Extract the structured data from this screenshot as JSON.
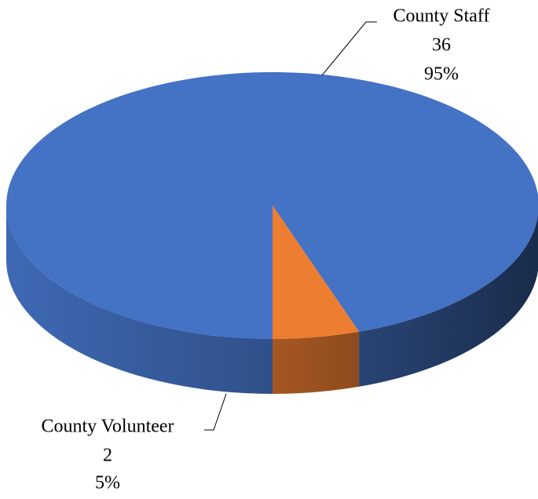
{
  "chart_data": {
    "type": "pie3d",
    "categories": [
      "County Staff",
      "County Volunteer"
    ],
    "values": [
      36,
      2
    ],
    "percent_labels": [
      "95%",
      "5%"
    ],
    "colors": [
      "#4472c4",
      "#ed7d31"
    ]
  }
}
